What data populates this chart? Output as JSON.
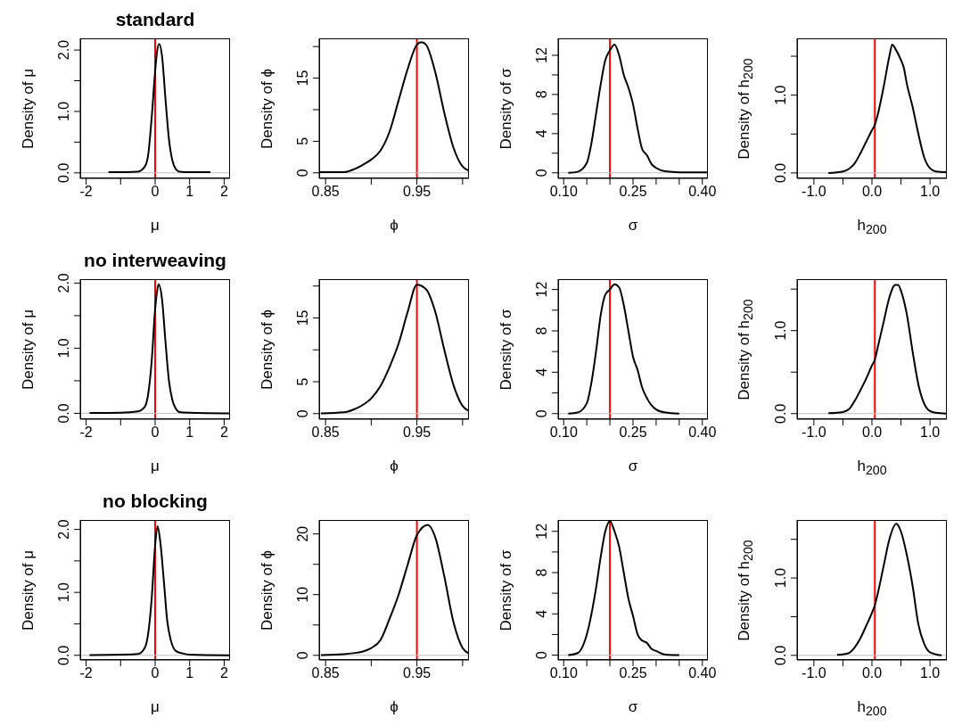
{
  "chart_data": [
    {
      "type": "line",
      "title": "standard",
      "xlabel": "μ",
      "ylabel": "Density of μ",
      "x": [
        -1.35,
        -0.5,
        -0.3,
        -0.2,
        -0.1,
        0,
        0.05,
        0.12,
        0.2,
        0.3,
        0.4,
        0.5,
        0.6,
        0.7,
        1.0,
        1.6
      ],
      "series": [
        {
          "color": "#000000",
          "values": [
            0.01,
            0.02,
            0.1,
            0.3,
            0.9,
            1.65,
            1.95,
            2.1,
            1.9,
            1.2,
            0.55,
            0.2,
            0.06,
            0.02,
            0.01,
            0.01
          ]
        }
      ],
      "xlim": [
        -2.17,
        2.17
      ],
      "xticks": [
        -2,
        {
          "value": -1,
          "label": null
        },
        0,
        1,
        2
      ],
      "ylim": [
        -0.09,
        2.19
      ],
      "yticks": [
        {
          "value": 0,
          "label": "0.0"
        },
        {
          "value": 0.5,
          "label": null
        },
        {
          "value": 1,
          "label": "1.0"
        },
        {
          "value": 1.5,
          "label": null
        },
        {
          "value": 2,
          "label": "2.0"
        }
      ],
      "ref_lines": [
        {
          "axis": "x",
          "value": 0,
          "color": "#ff0000"
        },
        {
          "axis": "y",
          "value": 0,
          "color": "#bebebe"
        }
      ]
    },
    {
      "type": "line",
      "xlabel": "ϕ",
      "ylabel": "Density of ϕ",
      "x": [
        0.843,
        0.87,
        0.88,
        0.89,
        0.9,
        0.91,
        0.92,
        0.93,
        0.94,
        0.95,
        0.955,
        0.96,
        0.97,
        0.98,
        0.99,
        1.0,
        1.007
      ],
      "series": [
        {
          "color": "#000000",
          "values": [
            0.1,
            0.1,
            0.5,
            1.2,
            2.1,
            3.5,
            6.5,
            11.5,
            16.5,
            20.3,
            20.7,
            20.3,
            16,
            9.5,
            4,
            1,
            0.3
          ]
        }
      ],
      "xlim": [
        0.843,
        1.007
      ],
      "xticks": [
        0.85,
        {
          "value": 0.9,
          "label": null
        },
        0.95,
        {
          "value": 1,
          "label": null
        }
      ],
      "ylim": [
        -0.88,
        21.3
      ],
      "yticks": [
        0,
        5,
        {
          "value": 10,
          "label": null
        },
        15,
        {
          "value": 20,
          "label": null
        }
      ],
      "ref_lines": [
        {
          "axis": "x",
          "value": 0.95,
          "color": "#ff0000"
        },
        {
          "axis": "y",
          "value": 0,
          "color": "#bebebe"
        }
      ]
    },
    {
      "type": "line",
      "xlabel": "σ",
      "ylabel": "Density of σ",
      "x": [
        0.11,
        0.13,
        0.15,
        0.16,
        0.17,
        0.18,
        0.19,
        0.2,
        0.21,
        0.22,
        0.23,
        0.24,
        0.25,
        0.26,
        0.27,
        0.28,
        0.29,
        0.3,
        0.32,
        0.35,
        0.41
      ],
      "series": [
        {
          "color": "#000000",
          "values": [
            0,
            0.1,
            1,
            3,
            6,
            9,
            11.5,
            12.5,
            13.1,
            12,
            10,
            8.7,
            7,
            4.5,
            2.4,
            1.8,
            0.9,
            0.5,
            0.15,
            0.05,
            0.05
          ]
        }
      ],
      "xlim": [
        0.088,
        0.412
      ],
      "xticks": [
        {
          "value": 0.1,
          "label": "0.10"
        },
        {
          "value": 0.15,
          "label": null
        },
        {
          "value": 0.2,
          "label": null
        },
        0.25,
        {
          "value": 0.3,
          "label": null
        },
        {
          "value": 0.35,
          "label": null
        },
        {
          "value": 0.4,
          "label": "0.40"
        }
      ],
      "ylim": [
        -0.57,
        13.73
      ],
      "yticks": [
        0,
        {
          "value": 2,
          "label": null
        },
        4,
        {
          "value": 6,
          "label": null
        },
        8,
        {
          "value": 10,
          "label": null
        },
        12
      ],
      "ref_lines": [
        {
          "axis": "x",
          "value": 0.2,
          "color": "#ff0000"
        },
        {
          "axis": "y",
          "value": 0,
          "color": "#bebebe"
        }
      ]
    },
    {
      "type": "line",
      "xlabel": "h$_{200}$",
      "ylabel": "Density of h$_{200}$",
      "x": [
        -0.75,
        -0.5,
        -0.4,
        -0.3,
        -0.2,
        -0.1,
        0,
        0.05,
        0.1,
        0.2,
        0.3,
        0.35,
        0.4,
        0.5,
        0.55,
        0.6,
        0.7,
        0.8,
        0.9,
        1.0,
        1.1,
        1.29
      ],
      "series": [
        {
          "color": "#000000",
          "values": [
            0,
            0.02,
            0.05,
            0.12,
            0.25,
            0.4,
            0.55,
            0.62,
            0.75,
            1.1,
            1.5,
            1.65,
            1.6,
            1.45,
            1.35,
            1.15,
            0.85,
            0.5,
            0.2,
            0.06,
            0.02,
            0.01
          ]
        }
      ],
      "xlim": [
        -1.29,
        1.29
      ],
      "xticks": [
        {
          "value": -1,
          "label": "-1.0"
        },
        {
          "value": -0.5,
          "label": null
        },
        {
          "value": 0,
          "label": "0.0"
        },
        {
          "value": 0.5,
          "label": null
        },
        {
          "value": 1,
          "label": "1.0"
        }
      ],
      "ylim": [
        -0.07,
        1.73
      ],
      "yticks": [
        {
          "value": 0,
          "label": "0.0"
        },
        {
          "value": 0.5,
          "label": null
        },
        {
          "value": 1,
          "label": "1.0"
        },
        {
          "value": 1.5,
          "label": null
        }
      ],
      "ref_lines": [
        {
          "axis": "x",
          "value": 0.05,
          "color": "#ff0000"
        },
        {
          "axis": "y",
          "value": 0,
          "color": "#bebebe"
        }
      ]
    },
    {
      "type": "line",
      "title": "no interweaving",
      "xlabel": "μ",
      "ylabel": "Density of μ",
      "x": [
        -1.9,
        -1,
        -0.5,
        -0.3,
        -0.2,
        -0.1,
        0,
        0.05,
        0.1,
        0.2,
        0.3,
        0.4,
        0.5,
        0.6,
        0.7,
        1,
        2.17
      ],
      "series": [
        {
          "color": "#000000",
          "values": [
            0.005,
            0.01,
            0.03,
            0.1,
            0.3,
            0.8,
            1.6,
            1.85,
            1.98,
            1.75,
            1.1,
            0.5,
            0.2,
            0.07,
            0.02,
            0.01,
            0
          ]
        }
      ],
      "xlim": [
        -2.17,
        2.17
      ],
      "xticks": [
        -2,
        {
          "value": -1,
          "label": null
        },
        0,
        1,
        2
      ],
      "ylim": [
        -0.09,
        2.06
      ],
      "yticks": [
        {
          "value": 0,
          "label": "0.0"
        },
        {
          "value": 0.5,
          "label": null
        },
        {
          "value": 1,
          "label": "1.0"
        },
        {
          "value": 1.5,
          "label": null
        },
        {
          "value": 2,
          "label": "2.0"
        }
      ],
      "ref_lines": [
        {
          "axis": "x",
          "value": 0,
          "color": "#ff0000"
        },
        {
          "axis": "y",
          "value": 0,
          "color": "#bebebe"
        }
      ]
    },
    {
      "type": "line",
      "xlabel": "ϕ",
      "ylabel": "Density of ϕ",
      "x": [
        0.845,
        0.87,
        0.88,
        0.89,
        0.9,
        0.91,
        0.92,
        0.93,
        0.94,
        0.95,
        0.96,
        0.97,
        0.98,
        0.99,
        1.0,
        1.007
      ],
      "series": [
        {
          "color": "#000000",
          "values": [
            0.05,
            0.2,
            0.6,
            1.3,
            2.4,
            4.3,
            7.3,
            11,
            16,
            20.2,
            19.5,
            16,
            10,
            4.5,
            1.2,
            0.4
          ]
        }
      ],
      "xlim": [
        0.843,
        1.007
      ],
      "xticks": [
        0.85,
        {
          "value": 0.9,
          "label": null
        },
        0.95,
        {
          "value": 1,
          "label": null
        }
      ],
      "ylim": [
        -0.87,
        21.07
      ],
      "yticks": [
        0,
        5,
        {
          "value": 10,
          "label": null
        },
        15,
        {
          "value": 20,
          "label": null
        }
      ],
      "ref_lines": [
        {
          "axis": "x",
          "value": 0.95,
          "color": "#ff0000"
        },
        {
          "axis": "y",
          "value": 0,
          "color": "#bebebe"
        }
      ]
    },
    {
      "type": "line",
      "xlabel": "σ",
      "ylabel": "Density of σ",
      "x": [
        0.11,
        0.13,
        0.15,
        0.16,
        0.17,
        0.18,
        0.19,
        0.2,
        0.21,
        0.22,
        0.23,
        0.24,
        0.25,
        0.26,
        0.27,
        0.28,
        0.29,
        0.3,
        0.32,
        0.35
      ],
      "series": [
        {
          "color": "#000000",
          "values": [
            0,
            0.1,
            1,
            3,
            6,
            9.5,
            11.5,
            12,
            12.5,
            12.2,
            10.5,
            8,
            5.5,
            4.2,
            2.5,
            1.5,
            0.8,
            0.4,
            0.1,
            0
          ]
        }
      ],
      "xlim": [
        0.088,
        0.412
      ],
      "xticks": [
        {
          "value": 0.1,
          "label": "0.10"
        },
        {
          "value": 0.15,
          "label": null
        },
        {
          "value": 0.2,
          "label": null
        },
        0.25,
        {
          "value": 0.3,
          "label": null
        },
        {
          "value": 0.35,
          "label": null
        },
        {
          "value": 0.4,
          "label": "0.40"
        }
      ],
      "ylim": [
        -0.54,
        13
      ],
      "yticks": [
        0,
        {
          "value": 2,
          "label": null
        },
        4,
        {
          "value": 6,
          "label": null
        },
        8,
        {
          "value": 10,
          "label": null
        },
        12
      ],
      "ref_lines": [
        {
          "axis": "x",
          "value": 0.2,
          "color": "#ff0000"
        },
        {
          "axis": "y",
          "value": 0,
          "color": "#bebebe"
        }
      ]
    },
    {
      "type": "line",
      "xlabel": "h$_{200}$",
      "ylabel": "Density of h$_{200}$",
      "x": [
        -0.75,
        -0.5,
        -0.4,
        -0.3,
        -0.2,
        -0.1,
        0,
        0.05,
        0.1,
        0.2,
        0.3,
        0.4,
        0.45,
        0.5,
        0.6,
        0.7,
        0.8,
        0.9,
        1.0,
        1.1,
        1.29
      ],
      "series": [
        {
          "color": "#000000",
          "values": [
            0.005,
            0.02,
            0.05,
            0.15,
            0.28,
            0.42,
            0.58,
            0.65,
            0.8,
            1.1,
            1.4,
            1.55,
            1.55,
            1.48,
            1.2,
            0.75,
            0.35,
            0.12,
            0.03,
            0.01,
            0
          ]
        }
      ],
      "xlim": [
        -1.29,
        1.29
      ],
      "xticks": [
        {
          "value": -1,
          "label": "-1.0"
        },
        {
          "value": -0.5,
          "label": null
        },
        {
          "value": 0,
          "label": "0.0"
        },
        {
          "value": 0.5,
          "label": null
        },
        {
          "value": 1,
          "label": "1.0"
        }
      ],
      "ylim": [
        -0.067,
        1.62
      ],
      "yticks": [
        {
          "value": 0,
          "label": "0.0"
        },
        {
          "value": 0.5,
          "label": null
        },
        {
          "value": 1,
          "label": "1.0"
        },
        {
          "value": 1.5,
          "label": null
        }
      ],
      "ref_lines": [
        {
          "axis": "x",
          "value": 0.05,
          "color": "#ff0000"
        },
        {
          "axis": "y",
          "value": 0,
          "color": "#bebebe"
        }
      ]
    },
    {
      "type": "line",
      "title": "no blocking",
      "xlabel": "μ",
      "ylabel": "Density of μ",
      "x": [
        -1.9,
        -1,
        -0.5,
        -0.3,
        -0.2,
        -0.1,
        0,
        0.07,
        0.15,
        0.25,
        0.35,
        0.45,
        0.6,
        0.8,
        1,
        2.17
      ],
      "series": [
        {
          "color": "#000000",
          "values": [
            0.005,
            0.01,
            0.02,
            0.12,
            0.35,
            0.9,
            1.75,
            2.05,
            1.8,
            1.2,
            0.55,
            0.25,
            0.07,
            0.03,
            0.01,
            0
          ]
        }
      ],
      "xlim": [
        -2.17,
        2.17
      ],
      "xticks": [
        -2,
        {
          "value": -1,
          "label": null
        },
        0,
        1,
        2
      ],
      "ylim": [
        -0.074,
        2.15
      ],
      "yticks": [
        {
          "value": 0,
          "label": "0.0"
        },
        {
          "value": 0.5,
          "label": null
        },
        {
          "value": 1,
          "label": "1.0"
        },
        {
          "value": 1.5,
          "label": null
        },
        {
          "value": 2,
          "label": "2.0"
        }
      ],
      "ref_lines": [
        {
          "axis": "x",
          "value": 0,
          "color": "#ff0000"
        },
        {
          "axis": "y",
          "value": 0,
          "color": "#bebebe"
        }
      ]
    },
    {
      "type": "line",
      "xlabel": "ϕ",
      "ylabel": "Density of ϕ",
      "x": [
        0.845,
        0.87,
        0.88,
        0.89,
        0.9,
        0.91,
        0.92,
        0.93,
        0.94,
        0.95,
        0.962,
        0.97,
        0.98,
        0.99,
        1.0,
        1.007
      ],
      "series": [
        {
          "color": "#000000",
          "values": [
            0.05,
            0.2,
            0.35,
            0.6,
            1.2,
            2.5,
            6,
            10,
            15,
            19.8,
            21.5,
            19.5,
            13,
            5.5,
            1.2,
            0.3
          ]
        }
      ],
      "xlim": [
        0.843,
        1.007
      ],
      "xticks": [
        0.85,
        {
          "value": 0.9,
          "label": null
        },
        0.95,
        {
          "value": 1,
          "label": null
        }
      ],
      "ylim": [
        -0.77,
        22.3
      ],
      "yticks": [
        0,
        {
          "value": 5,
          "label": null
        },
        10,
        {
          "value": 15,
          "label": null
        },
        20
      ],
      "ref_lines": [
        {
          "axis": "x",
          "value": 0.95,
          "color": "#ff0000"
        },
        {
          "axis": "y",
          "value": 0,
          "color": "#bebebe"
        }
      ]
    },
    {
      "type": "line",
      "xlabel": "σ",
      "ylabel": "Density of σ",
      "x": [
        0.11,
        0.13,
        0.15,
        0.17,
        0.18,
        0.19,
        0.2,
        0.21,
        0.22,
        0.23,
        0.24,
        0.25,
        0.26,
        0.27,
        0.28,
        0.29,
        0.3,
        0.32,
        0.35
      ],
      "series": [
        {
          "color": "#000000",
          "values": [
            0,
            0.2,
            2,
            6.5,
            9.5,
            12,
            13,
            12,
            10.5,
            8,
            5.5,
            3.8,
            2,
            1.4,
            1.2,
            0.6,
            0.4,
            0.05,
            0
          ]
        }
      ],
      "xlim": [
        0.088,
        0.412
      ],
      "xticks": [
        {
          "value": 0.1,
          "label": "0.10"
        },
        {
          "value": 0.15,
          "label": null
        },
        {
          "value": 0.2,
          "label": null
        },
        0.25,
        {
          "value": 0.3,
          "label": null
        },
        {
          "value": 0.35,
          "label": null
        },
        {
          "value": 0.4,
          "label": "0.40"
        }
      ],
      "ylim": [
        -0.47,
        13.1
      ],
      "yticks": [
        0,
        {
          "value": 2,
          "label": null
        },
        4,
        {
          "value": 6,
          "label": null
        },
        8,
        {
          "value": 10,
          "label": null
        },
        12
      ],
      "ref_lines": [
        {
          "axis": "x",
          "value": 0.2,
          "color": "#ff0000"
        },
        {
          "axis": "y",
          "value": 0,
          "color": "#bebebe"
        }
      ]
    },
    {
      "type": "line",
      "xlabel": "h$_{200}$",
      "ylabel": "Density of h$_{200}$",
      "x": [
        -0.6,
        -0.4,
        -0.3,
        -0.2,
        -0.1,
        0,
        0.05,
        0.1,
        0.2,
        0.3,
        0.42,
        0.5,
        0.6,
        0.7,
        0.8,
        0.9,
        1.0,
        1.2
      ],
      "series": [
        {
          "color": "#000000",
          "values": [
            0.005,
            0.03,
            0.1,
            0.22,
            0.38,
            0.55,
            0.65,
            0.8,
            1.15,
            1.5,
            1.7,
            1.6,
            1.3,
            0.9,
            0.4,
            0.15,
            0.04,
            0
          ]
        }
      ],
      "xlim": [
        -1.29,
        1.29
      ],
      "xticks": [
        {
          "value": -1,
          "label": "-1.0"
        },
        {
          "value": -0.5,
          "label": null
        },
        {
          "value": 0,
          "label": "0.0"
        },
        {
          "value": 0.5,
          "label": null
        },
        {
          "value": 1,
          "label": "1.0"
        }
      ],
      "ylim": [
        -0.06,
        1.75
      ],
      "yticks": [
        {
          "value": 0,
          "label": "0.0"
        },
        {
          "value": 0.5,
          "label": null
        },
        {
          "value": 1,
          "label": "1.0"
        },
        {
          "value": 1.5,
          "label": null
        }
      ],
      "ref_lines": [
        {
          "axis": "x",
          "value": 0.05,
          "color": "#ff0000"
        },
        {
          "axis": "y",
          "value": 0,
          "color": "#bebebe"
        }
      ]
    }
  ]
}
